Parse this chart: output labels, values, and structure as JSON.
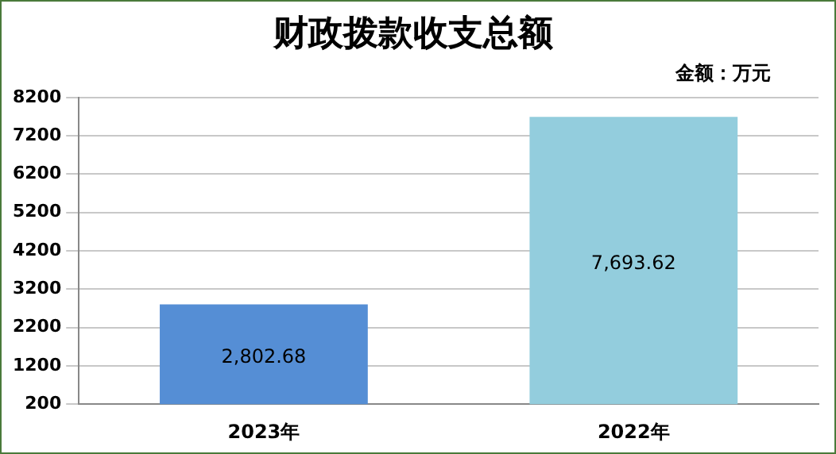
{
  "chart_data": {
    "type": "bar",
    "title": "财政拨款收支总额",
    "annotations": [
      "金额：万元"
    ],
    "categories": [
      "2023年",
      "2022年"
    ],
    "values": [
      2802.68,
      7693.62
    ],
    "value_labels": [
      "2,802.68",
      "7,693.62"
    ],
    "colors": [
      "#558ed5",
      "#93cddd"
    ],
    "ylim": [
      200,
      8200
    ],
    "yticks": [
      200,
      1200,
      2200,
      3200,
      4200,
      5200,
      6200,
      7200,
      8200
    ],
    "grid": "y",
    "legend": false
  }
}
